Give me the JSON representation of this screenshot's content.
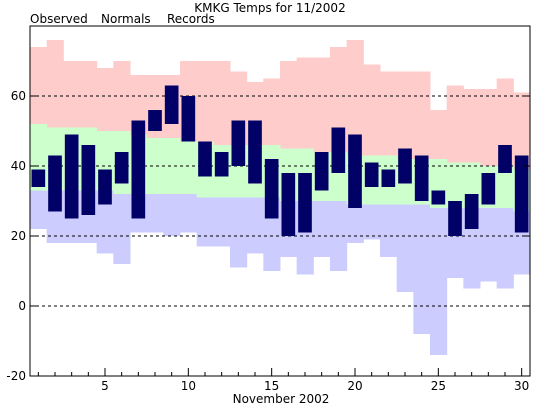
{
  "chart_data": {
    "type": "bar",
    "title": "KMKG Temps for 11/2002",
    "xlabel": "November 2002",
    "ylabel": "",
    "xlim": [
      0.5,
      30.5
    ],
    "ylim": [
      -20,
      80
    ],
    "y_ticks": [
      -20,
      0,
      20,
      40,
      60
    ],
    "x_ticks": [
      5,
      10,
      15,
      20,
      25,
      30
    ],
    "grid": "dashed horizontal at 0, 20, 40, 60",
    "legend": {
      "placement": "top-left, above plot",
      "entries": [
        {
          "name": "Observed",
          "color": "#000066"
        },
        {
          "name": "Normals",
          "color": "#008000"
        },
        {
          "name": "Records",
          "color": "#e4a0c8"
        }
      ]
    },
    "colors": {
      "observed": "#000066",
      "normals": "#ccffcc",
      "records_high": "#ffcccc",
      "records_low": "#ccccff",
      "frame": "#000000"
    },
    "categories": [
      1,
      2,
      3,
      4,
      5,
      6,
      7,
      8,
      9,
      10,
      11,
      12,
      13,
      14,
      15,
      16,
      17,
      18,
      19,
      20,
      21,
      22,
      23,
      24,
      25,
      26,
      27,
      28,
      29,
      30
    ],
    "series": [
      {
        "name": "Observed",
        "high": [
          39,
          43,
          49,
          46,
          39,
          44,
          53,
          56,
          63,
          60,
          47,
          44,
          53,
          53,
          42,
          38,
          38,
          44,
          51,
          49,
          41,
          39,
          45,
          43,
          33,
          30,
          32,
          38,
          46,
          43
        ],
        "low": [
          34,
          27,
          25,
          26,
          29,
          35,
          25,
          50,
          52,
          47,
          37,
          37,
          40,
          35,
          25,
          20,
          21,
          33,
          38,
          28,
          34,
          34,
          35,
          30,
          29,
          20,
          22,
          29,
          38,
          21
        ]
      },
      {
        "name": "Normals",
        "high": [
          52,
          51,
          51,
          51,
          50,
          50,
          49,
          48,
          48,
          47,
          47,
          46,
          46,
          46,
          46,
          45,
          45,
          44,
          44,
          43,
          43,
          43,
          42,
          42,
          42,
          41,
          41,
          40,
          40,
          39
        ],
        "low": [
          33,
          33,
          33,
          33,
          33,
          32,
          32,
          32,
          32,
          32,
          31,
          31,
          31,
          31,
          31,
          30,
          30,
          30,
          30,
          29,
          29,
          29,
          29,
          29,
          28,
          28,
          28,
          28,
          28,
          27
        ]
      },
      {
        "name": "Records",
        "high": [
          74,
          76,
          70,
          70,
          68,
          70,
          66,
          66,
          66,
          70,
          70,
          70,
          67,
          64,
          65,
          70,
          71,
          71,
          74,
          76,
          69,
          67,
          67,
          67,
          56,
          63,
          62,
          62,
          65,
          61
        ],
        "low": [
          22,
          18,
          18,
          18,
          15,
          12,
          21,
          21,
          20,
          21,
          17,
          17,
          11,
          15,
          10,
          14,
          9,
          14,
          10,
          18,
          19,
          14,
          4,
          -8,
          -14,
          8,
          5,
          7,
          5,
          9
        ]
      }
    ]
  }
}
